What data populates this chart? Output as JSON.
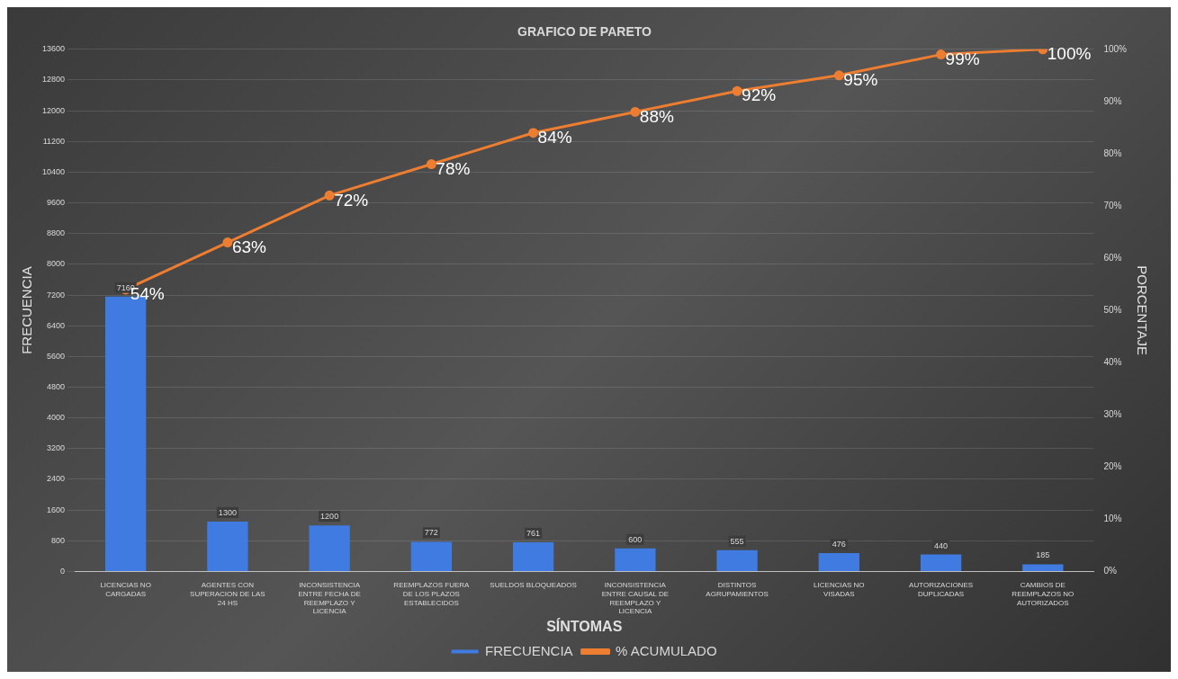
{
  "chart_data": {
    "type": "bar",
    "title": "GRAFICO DE PARETO",
    "xlabel": "SÍNTOMAS",
    "ylabel": "FRECUENCIA",
    "y2label": "PORCENTAJE",
    "categories": [
      "LICENCIAS NO CARGADAS",
      "AGENTES CON SUPERACION DE LAS 24 HS",
      "INCONSISTENCIA ENTRE FECHA DE REEMPLAZO Y LICENCIA",
      "REEMPLAZOS FUERA DE LOS PLAZOS ESTABLECIDOS",
      "SUELDOS BLOQUEADOS",
      "INCONSISTENCIA ENTRE CAUSAL DE REEMPLAZO Y LICENCIA",
      "DISTINTOS AGRUPAMIENTOS",
      "LICENCIAS NO VISADAS",
      "AUTORIZACIONES DUPLICADAS",
      "CAMBIOS DE REEMPLAZOS NO AUTORIZADOS"
    ],
    "series": [
      {
        "name": "FRECUENCIA",
        "color": "#3f7be0",
        "values": [
          7160,
          1300,
          1200,
          772,
          761,
          600,
          555,
          476,
          440,
          185
        ],
        "value_labels": [
          "7160",
          "1300",
          "1200",
          "772",
          "761",
          "600",
          "555",
          "476",
          "440",
          "185"
        ]
      },
      {
        "name": "% ACUMULADO",
        "type": "line",
        "axis": "y2",
        "color": "#ed7d31",
        "marker": "circle",
        "values": [
          54,
          63,
          72,
          78,
          84,
          88,
          92,
          95,
          99,
          100
        ],
        "value_labels": [
          "54%",
          "63%",
          "72%",
          "78%",
          "84%",
          "88%",
          "92%",
          "95%",
          "99%",
          "100%"
        ]
      }
    ],
    "ylim": [
      0,
      13600
    ],
    "yticks": [
      0,
      800,
      1600,
      2400,
      3200,
      4000,
      4800,
      5600,
      6400,
      7200,
      8000,
      8800,
      9600,
      10400,
      11200,
      12000,
      12800,
      13600
    ],
    "y2lim": [
      0,
      100
    ],
    "y2ticks": [
      {
        "value": 0,
        "label": "0%"
      },
      {
        "value": 10,
        "label": "10%"
      },
      {
        "value": 20,
        "label": "20%"
      },
      {
        "value": 30,
        "label": "30%"
      },
      {
        "value": 40,
        "label": "40%"
      },
      {
        "value": 50,
        "label": "50%"
      },
      {
        "value": 60,
        "label": "60%"
      },
      {
        "value": 70,
        "label": "70%"
      },
      {
        "value": 80,
        "label": "80%"
      },
      {
        "value": 90,
        "label": "90%"
      },
      {
        "value": 100,
        "label": "100%"
      }
    ],
    "grid": "y",
    "legend": "bottom"
  }
}
